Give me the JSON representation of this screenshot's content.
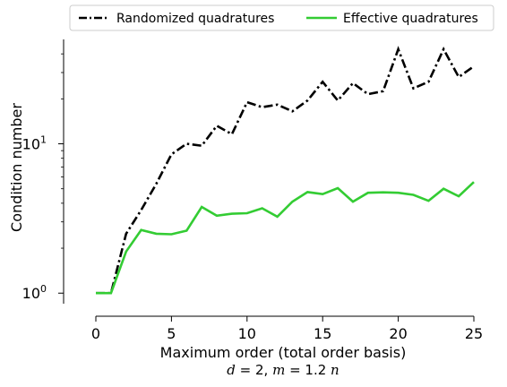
{
  "chart_data": {
    "type": "line",
    "xlabel": "Maximum order (total order basis)",
    "subtitle_parts": [
      "d",
      " = 2, ",
      "m",
      " = 1.2 ",
      "n"
    ],
    "ylabel": "Condition number",
    "yscale": "log",
    "xlim": [
      0,
      25
    ],
    "ylim": [
      0.85,
      50
    ],
    "x_ticks": [
      0,
      5,
      10,
      15,
      20,
      25
    ],
    "y_ticks": [
      {
        "value": 1,
        "base": "10",
        "exp": "0"
      },
      {
        "value": 10,
        "base": "10",
        "exp": "1"
      }
    ],
    "legend_position": "top, above plot, two columns",
    "x": [
      0,
      1,
      2,
      3,
      4,
      5,
      6,
      7,
      8,
      9,
      10,
      11,
      12,
      13,
      14,
      15,
      16,
      17,
      18,
      19,
      20,
      21,
      22,
      23,
      24,
      25
    ],
    "series": [
      {
        "name": "Randomized quadratures",
        "color": "#000000",
        "style": "dashdot",
        "values": [
          1.0,
          1.0,
          2.5,
          3.6,
          5.4,
          8.5,
          10.0,
          9.7,
          13.2,
          11.6,
          19.0,
          17.6,
          18.3,
          16.5,
          19.5,
          26.0,
          19.5,
          25.5,
          21.5,
          22.5,
          43.0,
          23.5,
          26.0,
          43.0,
          28.0,
          33.0
        ]
      },
      {
        "name": "Effective quadratures",
        "color": "#33cc33",
        "style": "solid",
        "values": [
          1.0,
          1.0,
          1.9,
          2.65,
          2.5,
          2.48,
          2.62,
          3.78,
          3.3,
          3.4,
          3.43,
          3.7,
          3.25,
          4.1,
          4.75,
          4.6,
          5.05,
          4.1,
          4.7,
          4.73,
          4.7,
          4.55,
          4.15,
          5.0,
          4.45,
          5.55
        ]
      }
    ]
  }
}
